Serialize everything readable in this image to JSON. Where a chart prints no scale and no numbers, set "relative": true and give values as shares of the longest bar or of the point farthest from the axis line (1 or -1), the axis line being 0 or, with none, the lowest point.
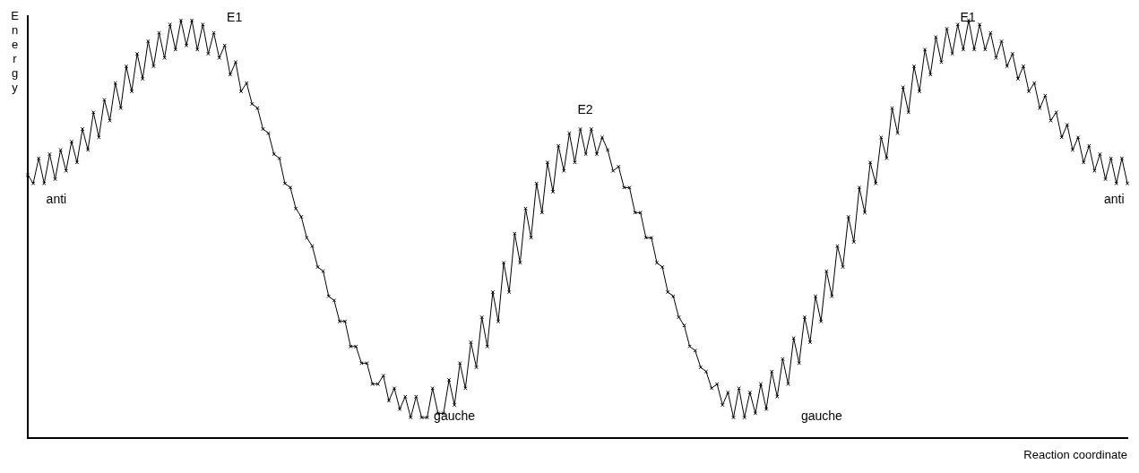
{
  "chart_data": {
    "type": "line",
    "relative": true,
    "xlabel": "Reaction coordinate",
    "ylabel": "Energy",
    "marker": "cross",
    "line_style": "solid",
    "grid": false,
    "legend": false,
    "tick_labels": false,
    "annotations": [
      "E1",
      "anti",
      "E2",
      "gauche",
      "gauche",
      "E1",
      "anti"
    ],
    "categories": [
      null,
      null,
      null,
      null,
      null,
      null,
      null,
      null,
      null,
      null,
      null,
      null,
      null,
      null,
      null,
      null,
      null,
      null,
      null,
      null,
      null,
      null,
      null,
      null,
      null,
      null,
      null,
      null,
      null,
      null,
      null,
      null,
      null,
      null,
      null,
      null,
      null,
      null,
      null,
      null,
      null,
      null,
      null,
      null,
      null,
      null,
      null,
      null,
      null,
      null,
      null,
      null,
      null,
      null,
      null,
      null,
      null,
      null,
      null,
      null,
      null,
      null,
      null,
      null,
      null,
      null,
      null,
      null,
      null,
      null,
      null,
      null,
      null,
      null,
      null,
      null,
      null,
      null,
      null,
      null,
      null,
      null,
      null,
      null,
      null,
      null,
      null,
      null,
      null,
      null,
      null,
      null,
      null,
      null,
      null,
      null,
      null,
      null,
      null,
      null,
      null,
      null,
      null,
      null,
      null,
      null,
      null,
      null,
      null,
      null,
      null,
      null,
      null,
      null,
      null,
      null,
      null,
      null,
      null,
      null,
      null,
      null,
      null,
      null,
      null,
      null,
      null,
      null,
      null,
      null,
      null,
      null,
      null,
      null,
      null,
      null,
      null,
      null,
      null,
      null,
      null,
      null,
      null,
      null,
      null,
      null,
      null,
      null,
      null,
      null,
      null,
      null,
      null,
      null,
      null,
      null,
      null,
      null,
      null,
      null,
      null,
      null,
      null,
      null,
      null,
      null,
      null,
      null,
      null,
      null,
      null,
      null,
      null,
      null,
      null,
      null,
      null,
      null,
      null,
      null,
      null,
      null,
      null,
      null,
      null,
      null,
      null,
      null,
      null,
      null,
      null,
      null,
      null,
      null,
      null,
      null,
      null,
      null,
      null,
      null,
      null,
      null
    ],
    "series": [
      {
        "color": "#000000",
        "values": [
          0.63,
          0.61,
          0.67,
          0.61,
          0.68,
          0.62,
          0.69,
          0.64,
          0.71,
          0.66,
          0.74,
          0.69,
          0.78,
          0.72,
          0.81,
          0.76,
          0.85,
          0.79,
          0.89,
          0.83,
          0.92,
          0.86,
          0.95,
          0.89,
          0.97,
          0.91,
          0.99,
          0.93,
          1,
          0.94,
          1,
          0.93,
          0.99,
          0.92,
          0.97,
          0.91,
          0.94,
          0.87,
          0.9,
          0.83,
          0.85,
          0.8,
          0.79,
          0.74,
          0.73,
          0.68,
          0.67,
          0.61,
          0.6,
          0.55,
          0.53,
          0.48,
          0.46,
          0.41,
          0.4,
          0.34,
          0.33,
          0.28,
          0.28,
          0.22,
          0.22,
          0.18,
          0.18,
          0.13,
          0.13,
          0.15,
          0.09,
          0.12,
          0.07,
          0.1,
          0.05,
          0.1,
          0.05,
          0.05,
          0.12,
          0.06,
          0.06,
          0.14,
          0.08,
          0.18,
          0.12,
          0.23,
          0.17,
          0.29,
          0.22,
          0.35,
          0.28,
          0.42,
          0.35,
          0.49,
          0.42,
          0.55,
          0.48,
          0.61,
          0.54,
          0.66,
          0.59,
          0.7,
          0.64,
          0.73,
          0.66,
          0.74,
          0.68,
          0.74,
          0.68,
          0.72,
          0.69,
          0.64,
          0.65,
          0.6,
          0.6,
          0.54,
          0.54,
          0.48,
          0.48,
          0.42,
          0.41,
          0.35,
          0.34,
          0.29,
          0.27,
          0.22,
          0.21,
          0.17,
          0.16,
          0.12,
          0.13,
          0.08,
          0.11,
          0.05,
          0.12,
          0.05,
          0.11,
          0.06,
          0.13,
          0.07,
          0.16,
          0.1,
          0.19,
          0.13,
          0.24,
          0.18,
          0.29,
          0.23,
          0.34,
          0.28,
          0.4,
          0.34,
          0.46,
          0.41,
          0.53,
          0.47,
          0.6,
          0.54,
          0.66,
          0.61,
          0.72,
          0.67,
          0.79,
          0.73,
          0.84,
          0.78,
          0.89,
          0.83,
          0.93,
          0.87,
          0.96,
          0.9,
          0.98,
          0.92,
          0.99,
          0.93,
          1,
          0.93,
          0.99,
          0.93,
          0.97,
          0.91,
          0.95,
          0.89,
          0.92,
          0.86,
          0.89,
          0.83,
          0.85,
          0.79,
          0.82,
          0.76,
          0.78,
          0.72,
          0.75,
          0.69,
          0.72,
          0.66,
          0.7,
          0.64,
          0.68,
          0.62,
          0.67,
          0.61,
          0.67,
          0.61
        ]
      }
    ]
  }
}
